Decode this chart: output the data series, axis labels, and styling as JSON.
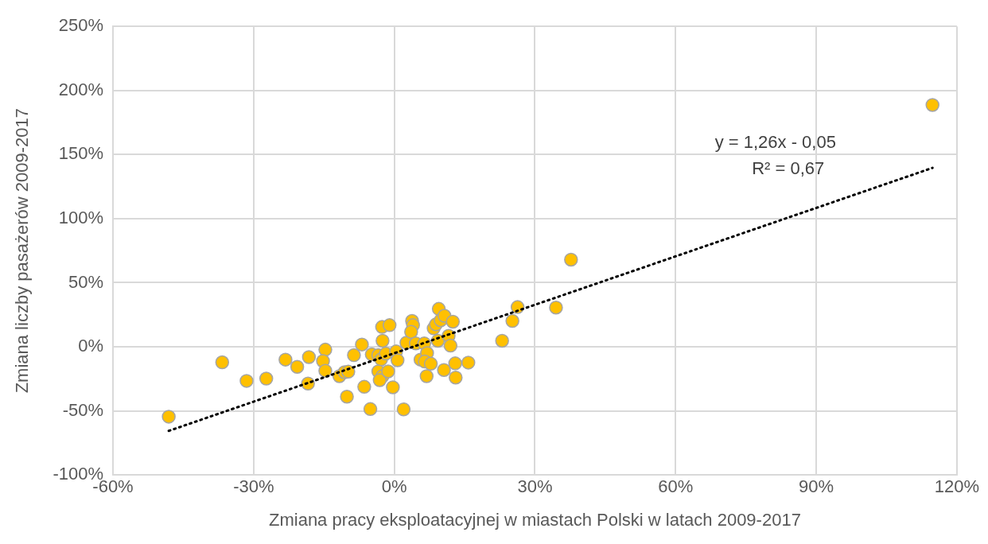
{
  "chart_data": {
    "type": "scatter",
    "xlabel": "Zmiana pracy eksploatacyjnej w miastach Polski w latach 2009-2017",
    "ylabel": "Zmiana liczby pasażerów 2009-2017",
    "xlim": [
      -60,
      120
    ],
    "ylim": [
      -100,
      250
    ],
    "xticks": [
      {
        "value": -60,
        "label": "-60%"
      },
      {
        "value": -30,
        "label": "-30%"
      },
      {
        "value": 0,
        "label": "0%"
      },
      {
        "value": 30,
        "label": "30%"
      },
      {
        "value": 60,
        "label": "60%"
      },
      {
        "value": 90,
        "label": "90%"
      },
      {
        "value": 120,
        "label": "120%"
      }
    ],
    "yticks": [
      {
        "value": -100,
        "label": "-100%"
      },
      {
        "value": -50,
        "label": "-50%"
      },
      {
        "value": 0,
        "label": "0%"
      },
      {
        "value": 50,
        "label": "50%"
      },
      {
        "value": 100,
        "label": "100%"
      },
      {
        "value": 150,
        "label": "150%"
      },
      {
        "value": 200,
        "label": "200%"
      },
      {
        "value": 250,
        "label": "250%"
      }
    ],
    "grid": true,
    "legend": false,
    "marker": "circle",
    "annotations": [
      "y = 1,26x - 0,05",
      "R² = 0,67"
    ],
    "series": [
      {
        "color": "#ffc000",
        "x": [
          -48.1,
          -36.7,
          -31.5,
          -27.3,
          -23.2,
          -20.7,
          -18.2,
          -18.4,
          -14.7,
          -15.2,
          -14.7,
          -11.7,
          -10.6,
          -9.8,
          -10.1,
          -8.6,
          -6.9,
          -6.4,
          -5.1,
          -4.8,
          -3.4,
          -2.8,
          -1.8,
          -2.6,
          -1.0,
          -2.5,
          -3.4,
          -2.5,
          -3.1,
          -1.3,
          -0.3,
          0.4,
          0.7,
          2.0,
          2.6,
          3.8,
          4.0,
          3.6,
          4.6,
          5.6,
          6.4,
          7.0,
          6.5,
          7.8,
          6.9,
          8.4,
          8.9,
          9.5,
          9.9,
          10.7,
          9.3,
          12.5,
          11.6,
          12.0,
          10.6,
          13.0,
          13.1,
          15.8,
          23.0,
          25.2,
          26.3,
          34.5,
          37.7,
          114.8
        ],
        "values": [
          -54.5,
          -12.1,
          -26.6,
          -24.8,
          -10.0,
          -15.6,
          -8.0,
          -28.7,
          -2.2,
          -11.1,
          -18.7,
          -22.9,
          -19.8,
          -19.4,
          -38.9,
          -6.5,
          1.8,
          -31.2,
          -48.6,
          -5.9,
          -6.5,
          -9.8,
          -5.3,
          15.5,
          16.9,
          4.7,
          -19.2,
          -22.9,
          -26.0,
          -19.2,
          -31.6,
          -3.6,
          -10.5,
          -48.8,
          3.2,
          20.2,
          16.9,
          11.7,
          2.6,
          -10.0,
          2.6,
          -4.9,
          -11.5,
          -13.2,
          -22.9,
          14.4,
          17.5,
          29.6,
          20.7,
          24.2,
          4.7,
          19.6,
          8.6,
          0.9,
          -18.1,
          -12.9,
          -24.0,
          -12.3,
          4.7,
          20.2,
          31.0,
          30.6,
          68.0,
          188.7
        ]
      },
      {
        "type": "line",
        "color": "#000000",
        "line_style": "dotted",
        "marker": "none",
        "x": [
          -48.1,
          114.8
        ],
        "values": [
          -65.6,
          139.6
        ]
      }
    ]
  }
}
